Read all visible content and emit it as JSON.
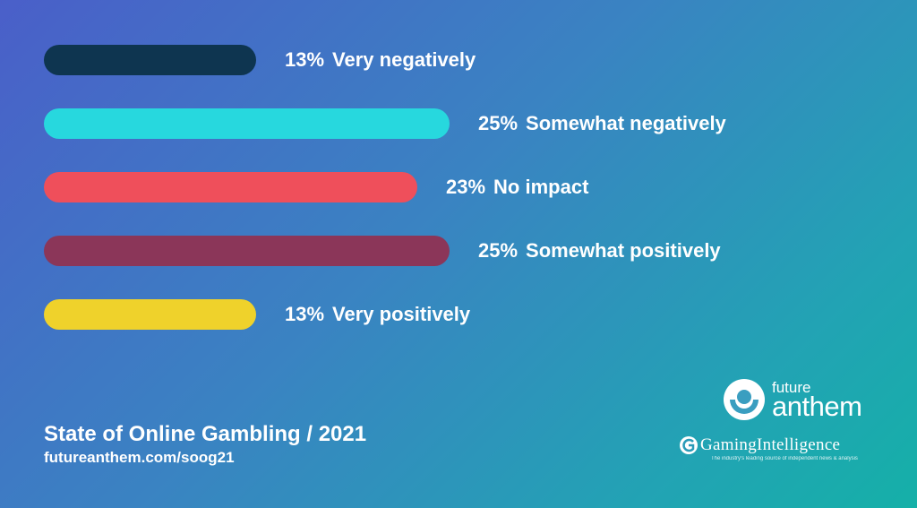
{
  "chart_data": {
    "type": "bar",
    "orientation": "horizontal",
    "categories": [
      "Very negatively",
      "Somewhat negatively",
      "No impact",
      "Somewhat positively",
      "Very positively"
    ],
    "values": [
      13,
      25,
      23,
      25,
      13
    ],
    "value_labels": [
      "13%",
      "25%",
      "23%",
      "25%",
      "13%"
    ],
    "colors": [
      "#0e3550",
      "#27d8de",
      "#ef4f5b",
      "#8b3659",
      "#efd22b"
    ],
    "unit": "%",
    "grid": false,
    "legend": "none"
  },
  "footer": {
    "title": "State of Online Gambling / 2021",
    "url": "futureanthem.com/soog21"
  },
  "logos": {
    "future_anthem": {
      "line1": "future",
      "line2": "anthem"
    },
    "gaming_intelligence": {
      "name": "GamingIntelligence",
      "tagline": "The industry's leading source of independent news & analysis"
    }
  }
}
